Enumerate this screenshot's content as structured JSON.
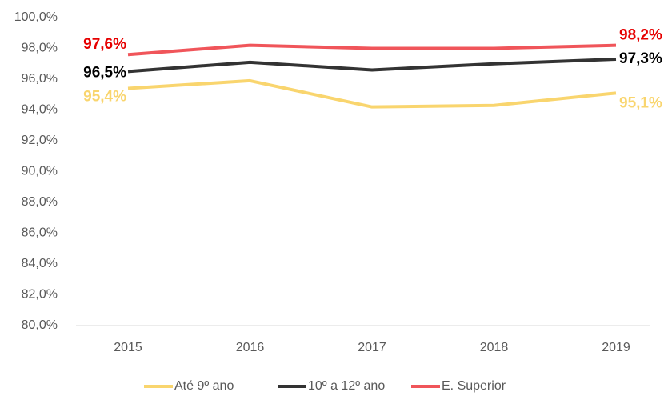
{
  "chart_data": {
    "type": "line",
    "categories": [
      "2015",
      "2016",
      "2017",
      "2018",
      "2019"
    ],
    "series": [
      {
        "name": "Até 9º ano",
        "color": "#f9d56e",
        "label_color": "#f9d56e",
        "values": [
          95.4,
          95.9,
          94.2,
          94.3,
          95.1
        ],
        "value_labels": [
          "95,4%",
          null,
          null,
          null,
          "95,1%"
        ]
      },
      {
        "name": "10º a 12º ano",
        "color": "#333333",
        "label_color": "#000000",
        "values": [
          96.5,
          97.1,
          96.6,
          97.0,
          97.3
        ],
        "value_labels": [
          "96,5%",
          null,
          null,
          null,
          "97,3%"
        ]
      },
      {
        "name": "E. Superior",
        "color": "#f0555a",
        "label_color": "#e60000",
        "values": [
          97.6,
          98.2,
          98.0,
          98.0,
          98.2
        ],
        "value_labels": [
          "97,6%",
          null,
          null,
          null,
          "98,2%"
        ]
      }
    ],
    "ylim": [
      80,
      100
    ],
    "yticks": [
      {
        "value": 80,
        "label": "80,0%"
      },
      {
        "value": 82,
        "label": "82,0%"
      },
      {
        "value": 84,
        "label": "84,0%"
      },
      {
        "value": 86,
        "label": "86,0%"
      },
      {
        "value": 88,
        "label": "88,0%"
      },
      {
        "value": 90,
        "label": "90,0%"
      },
      {
        "value": 92,
        "label": "92,0%"
      },
      {
        "value": 94,
        "label": "94,0%"
      },
      {
        "value": 96,
        "label": "96,0%"
      },
      {
        "value": 98,
        "label": "98,0%"
      },
      {
        "value": 100,
        "label": "100,0%"
      }
    ],
    "grid": false,
    "legend": "bottom"
  }
}
